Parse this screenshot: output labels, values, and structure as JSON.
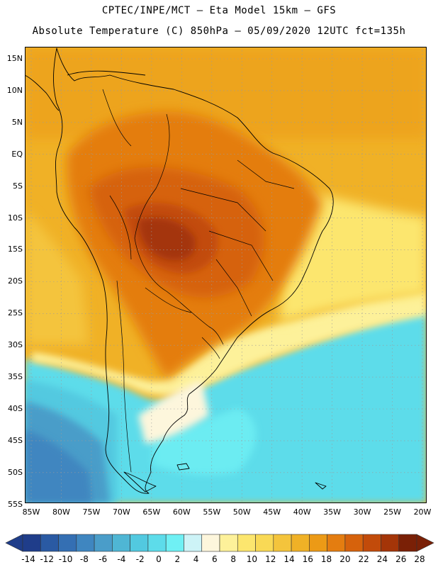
{
  "header": {
    "line1": "CPTEC/INPE/MCT —  Eta Model 15km — GFS",
    "line2": "Absolute Temperature (C) 850hPa — 05/09/2020 12UTC fct=135h"
  },
  "map": {
    "lat_labels": [
      "15N",
      "10N",
      "5N",
      "EQ",
      "5S",
      "10S",
      "15S",
      "20S",
      "25S",
      "30S",
      "35S",
      "40S",
      "45S",
      "50S",
      "55S"
    ],
    "lon_labels": [
      "85W",
      "80W",
      "75W",
      "70W",
      "65W",
      "60W",
      "55W",
      "50W",
      "45W",
      "40W",
      "35W",
      "30W",
      "25W",
      "20W"
    ],
    "lat_range": [
      15,
      -55
    ],
    "lon_range": [
      -85,
      -20
    ]
  },
  "colorbar": {
    "labels": [
      "-14",
      "-12",
      "-10",
      "-8",
      "-6",
      "-4",
      "-2",
      "0",
      "2",
      "4",
      "6",
      "8",
      "10",
      "12",
      "14",
      "16",
      "18",
      "20",
      "22",
      "24",
      "26",
      "28"
    ],
    "colors": [
      "#1f3d8a",
      "#2a5aa3",
      "#346fb3",
      "#3f86c0",
      "#4a9dc9",
      "#4fb6d4",
      "#52c9e0",
      "#5ddcea",
      "#6ff0f4",
      "#cdf3f7",
      "#fdf6dc",
      "#fdf19a",
      "#fce66e",
      "#f9d955",
      "#f4c43c",
      "#f0b126",
      "#ec9a16",
      "#e47d10",
      "#d6620c",
      "#c24b0a",
      "#a43508",
      "#7a2006"
    ]
  }
}
